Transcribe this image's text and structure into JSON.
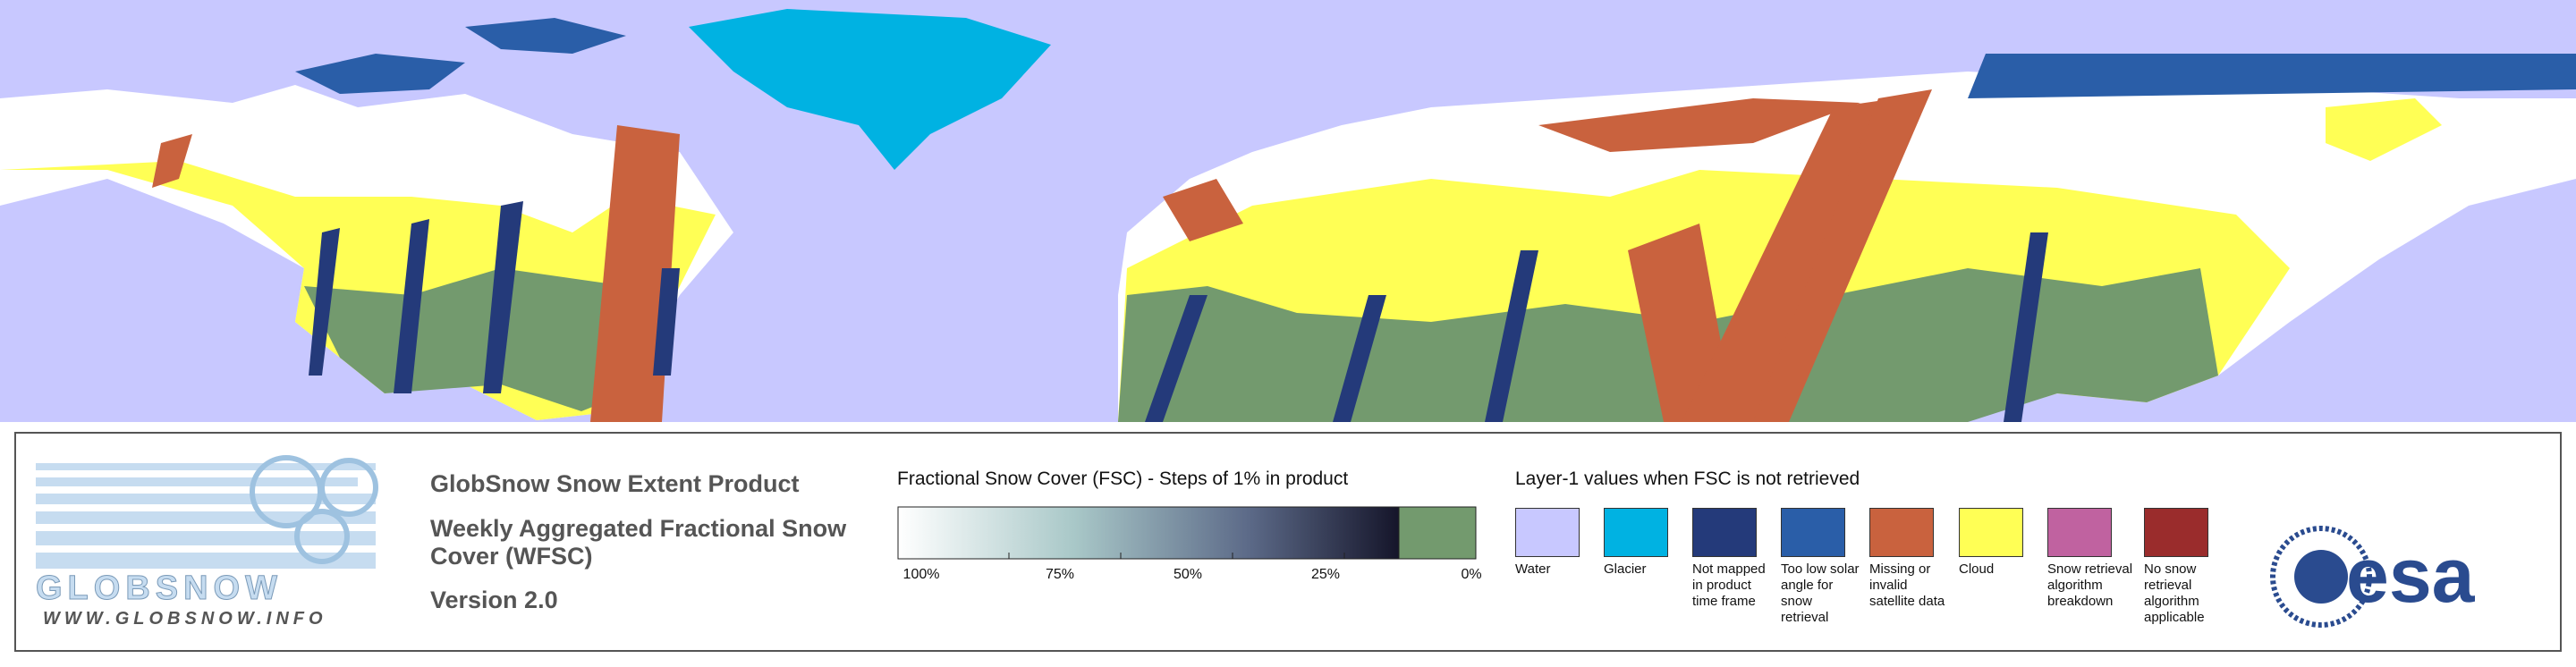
{
  "logo": {
    "name": "GLOBSNOW",
    "url": "WWW.GLOBSNOW.INFO"
  },
  "product": {
    "title": "GlobSnow Snow Extent Product",
    "subtitle_1": "Weekly Aggregated Fractional Snow",
    "subtitle_2": "Cover (WFSC)",
    "version": "Version 2.0"
  },
  "fsc_legend": {
    "title": "Fractional Snow Cover (FSC) - Steps of 1% in product",
    "ticks": [
      "100%",
      "75%",
      "50%",
      "25%",
      "0%"
    ]
  },
  "layer_legend": {
    "title": "Layer-1 values when FSC is not retrieved",
    "items": [
      {
        "label": "Water",
        "color": "#c8c8ff"
      },
      {
        "label": "Glacier",
        "color": "#00b2e2"
      },
      {
        "label": "Not mapped in product time frame",
        "color": "#243a7a"
      },
      {
        "label": "Too low solar angle for snow retrieval",
        "color": "#2a5ea8"
      },
      {
        "label": "Missing or invalid satellite data",
        "color": "#c9623e"
      },
      {
        "label": "Cloud",
        "color": "#ffff55"
      },
      {
        "label": "Snow retrieval algorithm breakdown",
        "color": "#c062a0"
      },
      {
        "label": "No snow retrieval algorithm applicable",
        "color": "#9a2c2c"
      }
    ]
  },
  "agency": "esa"
}
